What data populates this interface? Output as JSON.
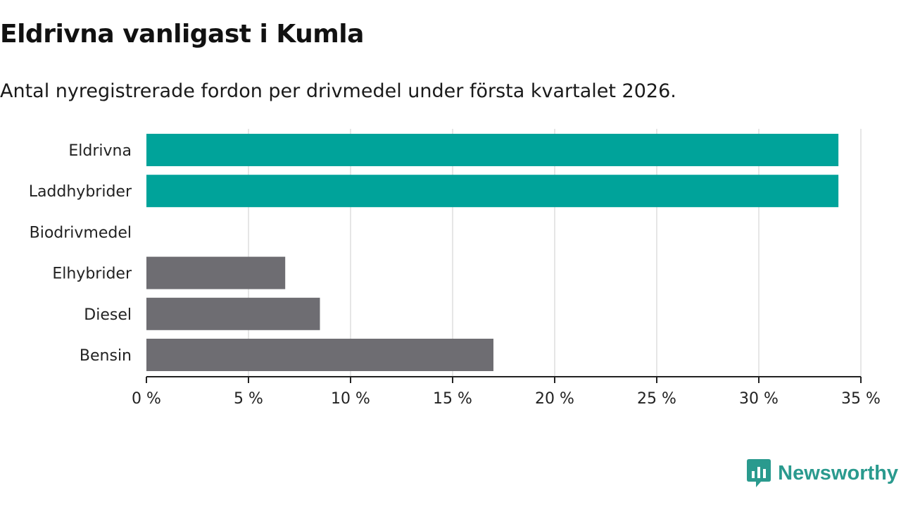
{
  "title": "Eldrivna vanligast i Kumla",
  "subtitle": "Antal nyregistrerade fordon per drivmedel under första kvartalet 2026.",
  "brand": {
    "name": "Newsworthy",
    "color": "#2a9a8e",
    "icon": "bar-chart-bubble-icon"
  },
  "colors": {
    "highlight": "#00a39a",
    "default": "#6e6d72",
    "grid": "#dddddd",
    "axis": "#222222"
  },
  "chart_data": {
    "type": "bar",
    "orientation": "horizontal",
    "categories": [
      "Eldrivna",
      "Laddhybrider",
      "Biodrivmedel",
      "Elhybrider",
      "Diesel",
      "Bensin"
    ],
    "values": [
      33.9,
      33.9,
      0,
      6.8,
      8.5,
      17.0
    ],
    "highlighted": [
      true,
      true,
      false,
      false,
      false,
      false
    ],
    "unit": "%",
    "xlim": [
      0,
      35
    ],
    "xticks": [
      0,
      5,
      10,
      15,
      20,
      25,
      30,
      35
    ],
    "xtick_labels": [
      "0 %",
      "5 %",
      "10 %",
      "15 %",
      "20 %",
      "25 %",
      "30 %",
      "35 %"
    ],
    "xlabel": "",
    "ylabel": "",
    "grid": true,
    "title": "Eldrivna vanligast i Kumla"
  }
}
